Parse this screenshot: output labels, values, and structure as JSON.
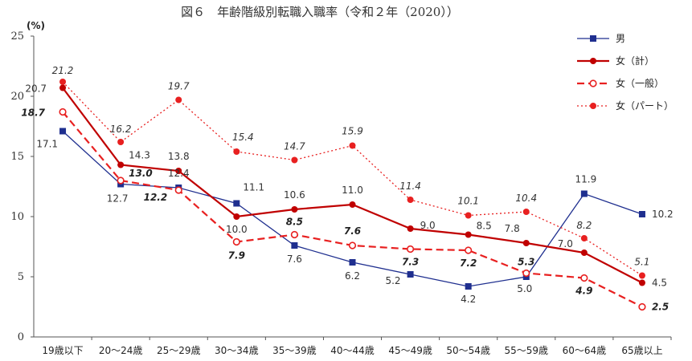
{
  "chart_data": {
    "type": "line",
    "title": "図６　年齢階級別転職入職率（令和２年（2020））",
    "ylabel": "(%)",
    "ylim": [
      0,
      25
    ],
    "yticks": [
      "0",
      "5",
      "10",
      "15",
      "20",
      "25"
    ],
    "categories": [
      "19歳以下",
      "20～24歳",
      "25～29歳",
      "30～34歳",
      "35～39歳",
      "40～44歳",
      "45～49歳",
      "50～54歳",
      "55～59歳",
      "60～64歳",
      "65歳以上"
    ],
    "legend_position": "top-right",
    "series": [
      {
        "name": "男",
        "color": "#1f2f8f",
        "dash": "solid",
        "marker": "square",
        "values": [
          17.1,
          12.7,
          12.4,
          11.1,
          7.6,
          6.2,
          5.2,
          4.2,
          5.0,
          11.9,
          10.2
        ],
        "labels": [
          "17.1",
          "12.7",
          "12.4",
          "11.1",
          "7.6",
          "6.2",
          "5.2",
          "4.2",
          "5.0",
          "11.9",
          "10.2"
        ]
      },
      {
        "name": "女（計）",
        "color": "#c00000",
        "dash": "solid",
        "marker": "circle",
        "values": [
          20.7,
          14.3,
          13.8,
          10.0,
          10.6,
          11.0,
          9.0,
          8.5,
          7.8,
          7.0,
          4.5
        ],
        "labels": [
          "20.7",
          "14.3",
          "13.8",
          "10.0",
          "10.6",
          "11.0",
          "9.0",
          "8.5",
          "7.8",
          "7.0",
          "4.5"
        ]
      },
      {
        "name": "女（一般）",
        "color": "#e82020",
        "dash": "dashed",
        "marker": "open-circle",
        "values": [
          18.7,
          13.0,
          12.2,
          7.9,
          8.5,
          7.6,
          7.3,
          7.2,
          5.3,
          4.9,
          2.5
        ],
        "labels": [
          "18.7",
          "13.0",
          "12.2",
          "7.9",
          "8.5",
          "7.6",
          "7.3",
          "7.2",
          "5.3",
          "4.9",
          "2.5"
        ]
      },
      {
        "name": "女（パート）",
        "color": "#e82020",
        "dash": "dotted",
        "marker": "circle",
        "values": [
          21.2,
          16.2,
          19.7,
          15.4,
          14.7,
          15.9,
          11.4,
          10.1,
          10.4,
          8.2,
          5.1
        ],
        "labels": [
          "21.2",
          "16.2",
          "19.7",
          "15.4",
          "14.7",
          "15.9",
          "11.4",
          "10.1",
          "10.4",
          "8.2",
          "5.1"
        ]
      }
    ]
  }
}
